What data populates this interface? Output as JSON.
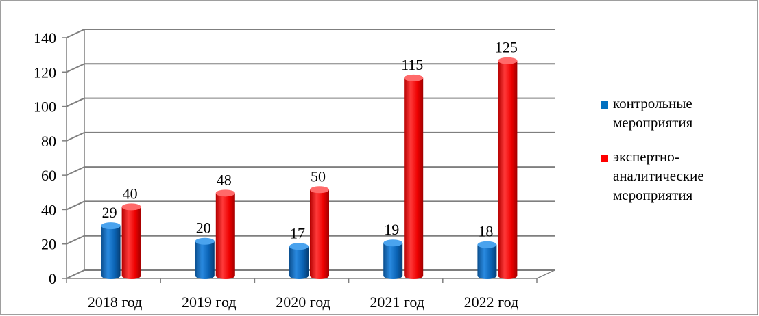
{
  "chart_data": {
    "type": "bar",
    "title": "",
    "xlabel": "",
    "ylabel": "",
    "categories": [
      "2018 год",
      "2019 год",
      "2020 год",
      "2021 год",
      "2022 год"
    ],
    "series": [
      {
        "name": "контрольные мероприятия",
        "values": [
          29,
          20,
          17,
          19,
          18
        ],
        "color": "#0070C0"
      },
      {
        "name": "экспертно-аналитические мероприятия",
        "values": [
          40,
          48,
          50,
          115,
          125
        ],
        "color": "#FF0000"
      }
    ],
    "legend_lines": [
      [
        "контрольные",
        "мероприятия"
      ],
      [
        "экспертно-",
        "аналитические",
        "мероприятия"
      ]
    ],
    "ylim": [
      0,
      140
    ],
    "yticks": [
      0,
      20,
      40,
      60,
      80,
      100,
      120,
      140
    ],
    "grid": true,
    "legend_position": "right",
    "style": "3d-cylinder"
  }
}
